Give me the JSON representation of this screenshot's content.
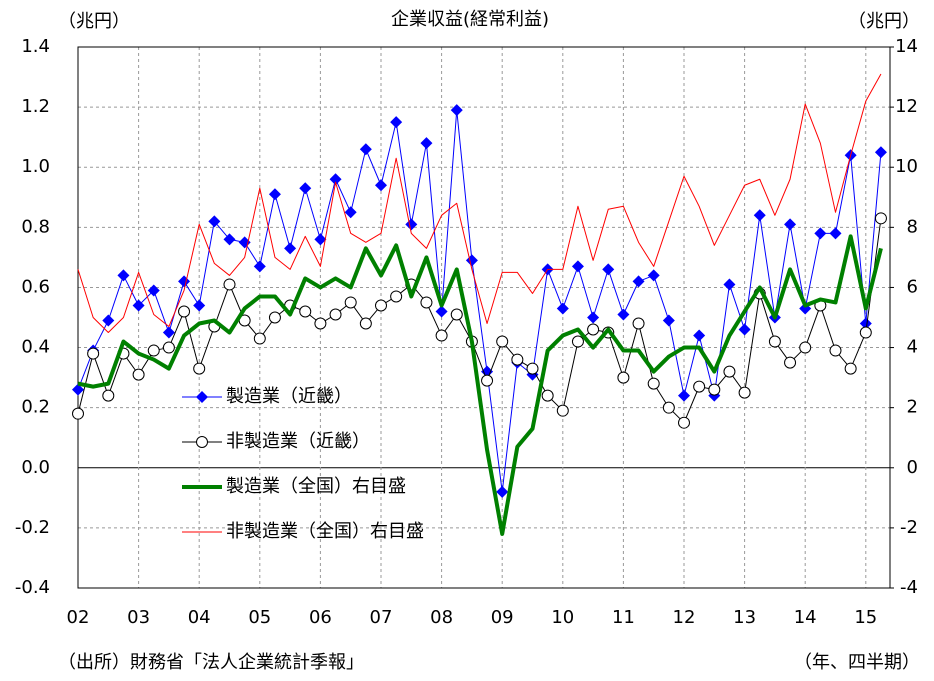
{
  "chart_data": {
    "type": "line",
    "title": "企業収益(経常利益)",
    "y_label": "（兆円）",
    "y2_label": "（兆円）",
    "x_label": "（年、四半期）",
    "source": "（出所）財務省「法人企業統計季報」",
    "categories": [
      "02",
      null,
      null,
      null,
      "03",
      null,
      null,
      null,
      "04",
      null,
      null,
      null,
      "05",
      null,
      null,
      null,
      "06",
      null,
      null,
      null,
      "07",
      null,
      null,
      null,
      "08",
      null,
      null,
      null,
      "09",
      null,
      null,
      null,
      "10",
      null,
      null,
      null,
      "11",
      null,
      null,
      null,
      "12",
      null,
      null,
      null,
      "13",
      null,
      null,
      null,
      "14",
      null,
      null,
      null,
      "15",
      null
    ],
    "ylim": [
      -0.4,
      1.4
    ],
    "yticks": [
      -0.4,
      -0.2,
      {
        "value": 0,
        "label": "0.0"
      },
      0.2,
      0.4,
      0.6,
      0.8,
      {
        "value": 1,
        "label": "1.0"
      },
      1.2,
      1.4
    ],
    "y2lim": [
      -4,
      14
    ],
    "y2ticks": [
      -4,
      -2,
      0,
      2,
      4,
      6,
      8,
      10,
      12,
      14
    ],
    "grid": true,
    "series": [
      {
        "name": "製造業（近畿）",
        "color": "#0000ff",
        "marker": "diamond",
        "values": [
          0.26,
          0.39,
          0.49,
          0.64,
          0.54,
          0.59,
          0.45,
          0.62,
          0.54,
          0.82,
          0.76,
          0.75,
          0.67,
          0.91,
          0.73,
          0.93,
          0.76,
          0.96,
          0.85,
          1.06,
          0.94,
          1.15,
          0.81,
          1.08,
          0.52,
          1.19,
          0.69,
          0.32,
          -0.08,
          0.35,
          0.31,
          0.66,
          0.53,
          0.67,
          0.5,
          0.66,
          0.51,
          0.62,
          0.64,
          0.49,
          0.24,
          0.44,
          0.24,
          0.61,
          0.46,
          0.84,
          0.5,
          0.81,
          0.53,
          0.78,
          0.78,
          1.04,
          0.48,
          1.05
        ]
      },
      {
        "name": "非製造業（近畿）",
        "color": "#000000",
        "marker": "circle",
        "values": [
          0.18,
          0.38,
          0.24,
          0.38,
          0.31,
          0.39,
          0.4,
          0.52,
          0.33,
          0.47,
          0.61,
          0.49,
          0.43,
          0.5,
          0.54,
          0.52,
          0.48,
          0.51,
          0.55,
          0.48,
          0.54,
          0.57,
          0.61,
          0.55,
          0.44,
          0.51,
          0.42,
          0.29,
          0.42,
          0.36,
          0.33,
          0.24,
          0.19,
          0.42,
          0.46,
          0.45,
          0.3,
          0.48,
          0.28,
          0.2,
          0.15,
          0.27,
          0.26,
          0.32,
          0.25,
          0.58,
          0.42,
          0.35,
          0.4,
          0.54,
          0.39,
          0.33,
          0.45,
          0.83
        ]
      },
      {
        "name": "製造業（全国）右目盛",
        "color": "#008000",
        "axis": "y2",
        "values": [
          2.8,
          2.7,
          2.8,
          4.2,
          3.8,
          3.6,
          3.3,
          4.4,
          4.8,
          4.9,
          4.5,
          5.3,
          5.7,
          5.7,
          5.1,
          6.3,
          6.0,
          6.3,
          6.0,
          7.3,
          6.4,
          7.4,
          5.7,
          7.0,
          5.4,
          6.6,
          4.2,
          0.6,
          -2.2,
          0.7,
          1.3,
          3.9,
          4.4,
          4.6,
          4.0,
          4.6,
          3.9,
          3.9,
          3.2,
          3.7,
          4.0,
          4.0,
          3.2,
          4.4,
          5.2,
          6.0,
          5.0,
          6.6,
          5.4,
          5.6,
          5.5,
          7.7,
          5.3,
          7.3
        ]
      },
      {
        "name": "非製造業（全国）右目盛",
        "color": "#ff0000",
        "axis": "y2",
        "values": [
          6.6,
          5.0,
          4.5,
          5.0,
          6.5,
          5.1,
          4.7,
          5.9,
          8.1,
          6.8,
          6.4,
          7.0,
          9.3,
          7.0,
          6.6,
          7.7,
          6.7,
          9.5,
          7.8,
          7.5,
          7.8,
          10.3,
          7.8,
          7.3,
          8.4,
          8.8,
          6.6,
          4.8,
          6.5,
          6.5,
          5.8,
          6.6,
          6.6,
          8.7,
          6.9,
          8.6,
          8.7,
          7.5,
          6.7,
          8.2,
          9.7,
          8.7,
          7.4,
          8.4,
          9.4,
          9.6,
          8.4,
          9.6,
          12.1,
          10.8,
          8.5,
          10.4,
          12.2,
          13.1
        ]
      }
    ]
  }
}
